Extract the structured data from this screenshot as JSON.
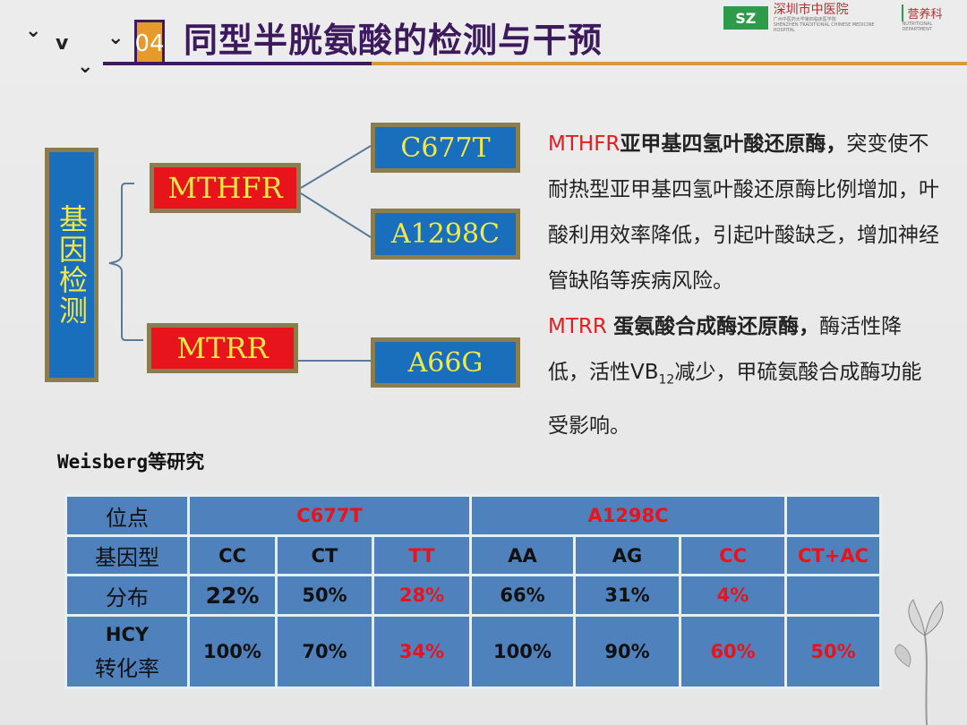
{
  "header": {
    "section_number": "04",
    "title": "同型半胱氨酸的检测与干预",
    "logo": {
      "mark": "SZ",
      "name": "深圳市中医院",
      "subtitle": "广州中医药大学第四临床医学院",
      "subtitle_en": "SHENZHEN TRADITIONAL CHINESE MEDICINE HOSPITAL",
      "department": "营养科",
      "department_en": "NUTRITIONAL DEPARTMENT"
    }
  },
  "diagram": {
    "root": "基因检测",
    "genes": [
      {
        "name": "MTHFR",
        "variants": [
          "C677T",
          "A1298C"
        ]
      },
      {
        "name": "MTRR",
        "variants": [
          "A66G"
        ]
      }
    ],
    "colors": {
      "root": "#1a6fbd",
      "gene": "#e8141c",
      "variant": "#1a6fbd",
      "text": "#f2e84a",
      "border": "#8b7d4f"
    }
  },
  "description": {
    "p1_gene": "MTHFR",
    "p1_bold": "亚甲基四氢叶酸还原酶，",
    "p1_text": "突变使不耐热型亚甲基四氢叶酸还原酶比例增加，叶酸利用效率降低，引起叶酸缺乏，增加神经管缺陷等疾病风险。",
    "p2_gene": "MTRR ",
    "p2_bold": "蛋氨酸合成酶还原酶，",
    "p2_text1": "酶活性降低，活性VB",
    "p2_sub": "12",
    "p2_text2": "减少，甲硫氨酸合成酶功能受影响。"
  },
  "study": {
    "author": "Weisberg",
    "suffix": "等研究"
  },
  "table": {
    "row_labels": [
      "位点",
      "基因型",
      "分布",
      "HCY",
      "转化率"
    ],
    "sites": [
      "C677T",
      "A1298C",
      ""
    ],
    "genotypes": [
      "CC",
      "CT",
      "TT",
      "AA",
      "AG",
      "CC",
      "CT+AC"
    ],
    "distribution": [
      "22%",
      "50%",
      "28%",
      "66%",
      "31%",
      "4%",
      ""
    ],
    "hcy_conversion": [
      "100%",
      "70%",
      "34%",
      "100%",
      "90%",
      "60%",
      "50%"
    ]
  }
}
